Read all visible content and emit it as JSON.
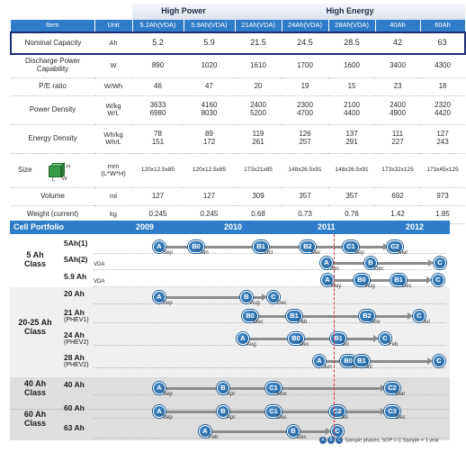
{
  "spec_table": {
    "group_headers": {
      "high_power": "High Power",
      "high_energy": "High Energy"
    },
    "columns": [
      "Item",
      "Unit",
      "5.2Ah(VDA)",
      "5.9Ah(VDA)",
      "21Ah(VDA)",
      "24Ah(VDA)",
      "28Ah(VDA)",
      "40Ah",
      "60Ah"
    ],
    "rows": [
      {
        "item": "Nominal Capacity",
        "unit": "Ah",
        "values": [
          "5.2",
          "5.9",
          "21.5",
          "24.5",
          "28.5",
          "42",
          "63"
        ]
      },
      {
        "item": "Discharge Power Capability",
        "unit": "W",
        "values": [
          "890",
          "1020",
          "1610",
          "1700",
          "1600",
          "3400",
          "4300"
        ]
      },
      {
        "item": "P/E ratio",
        "unit": "W/Wh",
        "values": [
          "46",
          "47",
          "20",
          "19",
          "15",
          "23",
          "18"
        ]
      },
      {
        "item": "Power Density",
        "unit": "W/kg\nW/L",
        "values": [
          "3633\n6980",
          "4160\n8030",
          "2400\n5200",
          "2300\n4700",
          "2100\n4400",
          "2400\n4900",
          "2320\n4420"
        ]
      },
      {
        "item": "Energy Density",
        "unit": "Wh/kg\nWh/L",
        "values": [
          "78\n151",
          "89\n172",
          "119\n261",
          "126\n257",
          "137\n291",
          "111\n227",
          "127\n243"
        ]
      },
      {
        "item": "Size",
        "unit": "mm\n(L*W*H)",
        "values": [
          "120x12.5x85",
          "120x12.5x85",
          "173x21x85",
          "148x26.5x91",
          "148x26.5x91",
          "173x32x125",
          "173x45x125"
        ]
      },
      {
        "item": "Volume",
        "unit": "ml",
        "values": [
          "127",
          "127",
          "309",
          "357",
          "357",
          "692",
          "973"
        ]
      },
      {
        "item": "Weight (current)",
        "unit": "kg",
        "values": [
          "0.245",
          "0.245",
          "0.68",
          "0.73",
          "0.76",
          "1.42",
          "1.85"
        ]
      }
    ],
    "battery_labels": {
      "h": "H",
      "l": "L",
      "w": "W"
    },
    "highlight_color": "#1f2d74",
    "header_color": "#2f7dc9"
  },
  "portfolio": {
    "title": "Cell Portfolio",
    "years": [
      "2009",
      "2010",
      "2011",
      "2012"
    ],
    "classes": [
      "5 Ah\nClass",
      "20-25 Ah\nClass",
      "40 Ah\nClass",
      "60 Ah\nClass"
    ],
    "rows": [
      {
        "name": "5Ah(1)",
        "note": ""
      },
      {
        "name": "5Ah(2)",
        "note": "VDA"
      },
      {
        "name": "5.9 Ah",
        "note": "VDA"
      },
      {
        "name": "20 Ah",
        "note": ""
      },
      {
        "name": "21 Ah",
        "note": "(PHEV1)"
      },
      {
        "name": "24 Ah",
        "note": "(PHEV2)"
      },
      {
        "name": "28 Ah",
        "note": "(PHEV2)"
      },
      {
        "name": "40 Ah",
        "note": ""
      },
      {
        "name": "60 Ah",
        "note": ""
      },
      {
        "name": "63 Ah",
        "note": ""
      }
    ],
    "milestones": [
      {
        "row": 0,
        "stage": "A",
        "month": "Sep"
      },
      {
        "row": 0,
        "stage": "B0",
        "month": "Jan"
      },
      {
        "row": 0,
        "stage": "B1",
        "month": "Oct"
      },
      {
        "row": 0,
        "stage": "B2",
        "month": "Mar"
      },
      {
        "row": 0,
        "stage": "C1",
        "month": "Sep"
      },
      {
        "row": 0,
        "stage": "C2",
        "month": "Mar"
      },
      {
        "row": 1,
        "stage": "A",
        "month": "Jun"
      },
      {
        "row": 1,
        "stage": "B",
        "month": "Dec"
      },
      {
        "row": 1,
        "stage": "C",
        "month": ""
      },
      {
        "row": 2,
        "stage": "A",
        "month": "May"
      },
      {
        "row": 2,
        "stage": "B0",
        "month": "Aug"
      },
      {
        "row": 2,
        "stage": "B1",
        "month": "Dec"
      },
      {
        "row": 2,
        "stage": "C",
        "month": ""
      },
      {
        "row": 3,
        "stage": "A",
        "month": "Sep"
      },
      {
        "row": 3,
        "stage": "B",
        "month": "Aug"
      },
      {
        "row": 3,
        "stage": "C",
        "month": "Dec"
      },
      {
        "row": 4,
        "stage": "B0",
        "month": "Dec"
      },
      {
        "row": 4,
        "stage": "B1",
        "month": "Feb"
      },
      {
        "row": 4,
        "stage": "B2",
        "month": "Nov"
      },
      {
        "row": 4,
        "stage": "C",
        "month": "Jul"
      },
      {
        "row": 5,
        "stage": "A",
        "month": "Aug"
      },
      {
        "row": 5,
        "stage": "B0",
        "month": "Dec"
      },
      {
        "row": 5,
        "stage": "B1",
        "month": "Jul"
      },
      {
        "row": 5,
        "stage": "C",
        "month": "Feb"
      },
      {
        "row": 6,
        "stage": "A",
        "month": "Jun"
      },
      {
        "row": 6,
        "stage": "B0",
        "month": "Jul"
      },
      {
        "row": 6,
        "stage": "B1",
        "month": "Jul"
      },
      {
        "row": 6,
        "stage": "C",
        "month": ""
      },
      {
        "row": 7,
        "stage": "A",
        "month": "Sep"
      },
      {
        "row": 7,
        "stage": "B",
        "month": "Apr"
      },
      {
        "row": 7,
        "stage": "C1",
        "month": "Nov"
      },
      {
        "row": 7,
        "stage": "C2",
        "month": "Mar"
      },
      {
        "row": 8,
        "stage": "A",
        "month": "Sep"
      },
      {
        "row": 8,
        "stage": "B",
        "month": "Apr"
      },
      {
        "row": 8,
        "stage": "C1",
        "month": "Dec"
      },
      {
        "row": 8,
        "stage": "C2",
        "month": "Jul"
      },
      {
        "row": 8,
        "stage": "C3",
        "month": "Dec"
      },
      {
        "row": 9,
        "stage": "A",
        "month": "Feb"
      },
      {
        "row": 9,
        "stage": "B",
        "month": "Dec"
      },
      {
        "row": 9,
        "stage": "C",
        "month": ""
      }
    ],
    "legend": "Sample phases,  SOP = C Sample + 1 year",
    "legend_pins": [
      "A",
      "B",
      "C"
    ],
    "current_marker_color": "#e0322d"
  }
}
